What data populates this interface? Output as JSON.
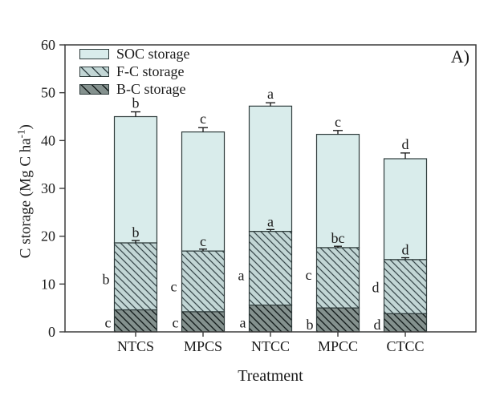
{
  "panel_label": "A)",
  "colors": {
    "soc_fill": "#d9eceb",
    "fc_fill": "#c2d6d5",
    "fc_hatch": "#37474a",
    "bc_fill": "#84918e",
    "bc_hatch": "#141c1c",
    "bar_stroke": "#2e3b3b",
    "axis_stroke": "#3c3c3c",
    "text": "#1a1a1a"
  },
  "chart_data": {
    "type": "stacked-bar",
    "title": "",
    "xlabel": "Treatment",
    "ylabel": "C storage (Mg C ha⁻¹)",
    "ylabel_pre": "C storage (Mg C ha",
    "ylabel_sup": "-1",
    "ylabel_post": ")",
    "categories": [
      "NTCS",
      "MPCS",
      "NTCC",
      "MPCC",
      "CTCC"
    ],
    "series": [
      {
        "name": "B-C storage",
        "swatch": "bc",
        "values": [
          4.6,
          4.2,
          5.6,
          5.0,
          3.8
        ]
      },
      {
        "name": "F-C storage",
        "swatch": "fc",
        "values": [
          14.0,
          12.7,
          15.4,
          12.6,
          11.3
        ]
      },
      {
        "name": "SOC storage",
        "swatch": "soc",
        "values": [
          26.4,
          24.9,
          26.2,
          23.7,
          21.1
        ]
      }
    ],
    "stack_totals": [
      45.0,
      41.8,
      47.2,
      41.3,
      36.2
    ],
    "fc_boundary": [
      18.6,
      16.9,
      21.0,
      17.6,
      15.1
    ],
    "total_err": [
      1.0,
      0.9,
      0.7,
      0.8,
      1.2
    ],
    "fc_err": [
      0.5,
      0.4,
      0.4,
      0.3,
      0.4
    ],
    "letters_total": [
      "b",
      "c",
      "a",
      "c",
      "d"
    ],
    "letters_fc_top": [
      "b",
      "c",
      "a",
      "bc",
      "d"
    ],
    "letters_left": [
      "b",
      "c",
      "a",
      "c",
      "d"
    ],
    "letters_left_y": [
      11.0,
      9.5,
      11.8,
      11.9,
      9.3
    ],
    "letters_bottom": [
      "c",
      "c",
      "a",
      "b",
      "d"
    ],
    "letters_bottom_y": [
      1.9,
      1.9,
      1.9,
      1.5,
      1.5
    ],
    "ylim": [
      0,
      60
    ],
    "yticks": [
      0,
      10,
      20,
      30,
      40,
      50,
      60
    ],
    "grid": "off",
    "legend_position": "upper-left",
    "legend": [
      {
        "label": "SOC storage",
        "swatch": "soc"
      },
      {
        "label": "F-C storage",
        "swatch": "fc"
      },
      {
        "label": "B-C storage",
        "swatch": "bc"
      }
    ]
  }
}
